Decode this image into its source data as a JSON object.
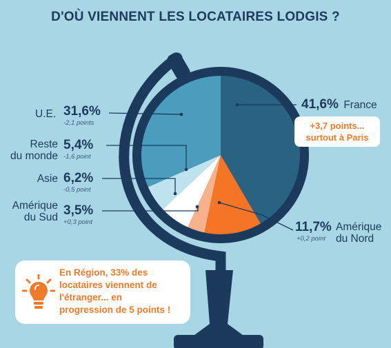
{
  "title": "D'OÙ VIENNENT LES LOCATAIRES LODGIS ?",
  "chart_data": {
    "type": "pie",
    "title": "D'OÙ VIENNENT LES LOCATAIRES LODGIS ?",
    "slices": [
      {
        "name": "France",
        "pct_label": "41,6%",
        "value": 41.6,
        "change": "",
        "color": "#2a6281"
      },
      {
        "name": "Amérique du Nord",
        "name_lines": [
          "Amérique",
          "du Nord"
        ],
        "pct_label": "11,7%",
        "value": 11.7,
        "change": "+0,2 point",
        "color": "#f57527"
      },
      {
        "name": "Amérique du Sud",
        "name_lines": [
          "Amérique",
          "du Sud"
        ],
        "pct_label": "3,5%",
        "value": 3.5,
        "change": "+0,3 point",
        "color": "#f7b28c"
      },
      {
        "name": "Asie",
        "name_lines": [
          "Asie"
        ],
        "pct_label": "6,2%",
        "value": 6.2,
        "change": "-0,5 point",
        "color": "#ffffff"
      },
      {
        "name": "Reste du monde",
        "name_lines": [
          "Reste",
          "du monde"
        ],
        "pct_label": "5,4%",
        "value": 5.4,
        "change": "-1,6 point",
        "color": "#bfe4ef"
      },
      {
        "name": "U.E.",
        "name_lines": [
          "U.E."
        ],
        "pct_label": "31,6%",
        "value": 31.6,
        "change": "-2,1 points",
        "color": "#4b9dbd"
      }
    ],
    "highlight": {
      "line1": "+3,7 points...",
      "line2": "surtout à Paris"
    }
  },
  "note": {
    "lines": [
      "En Région, 33% des",
      "locataires viennent de",
      "l'étranger... en",
      "progression de 5 points !"
    ],
    "icon": "lightbulb-icon"
  },
  "colors": {
    "background": "#a9d6e5",
    "navy": "#1b3a5c",
    "accent": "#f07a2a"
  }
}
